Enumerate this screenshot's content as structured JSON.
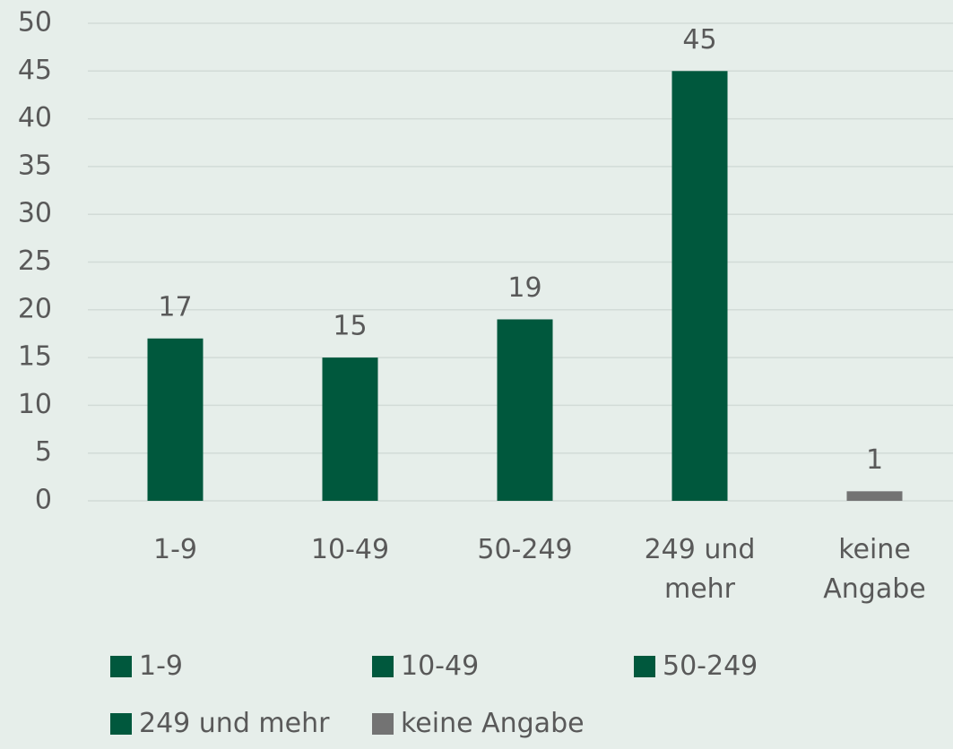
{
  "chart_data": {
    "type": "bar",
    "categories": [
      "1-9",
      "10-49",
      "50-249",
      "249 und mehr",
      "keine Angabe"
    ],
    "values": [
      17,
      15,
      19,
      45,
      1
    ],
    "colors": [
      "#00583d",
      "#00583d",
      "#00583d",
      "#00583d",
      "#737373"
    ],
    "ylim": [
      0,
      50
    ],
    "yticks": [
      0,
      5,
      10,
      15,
      20,
      25,
      30,
      35,
      40,
      45,
      50
    ],
    "grid": true,
    "legend": "bottom"
  }
}
